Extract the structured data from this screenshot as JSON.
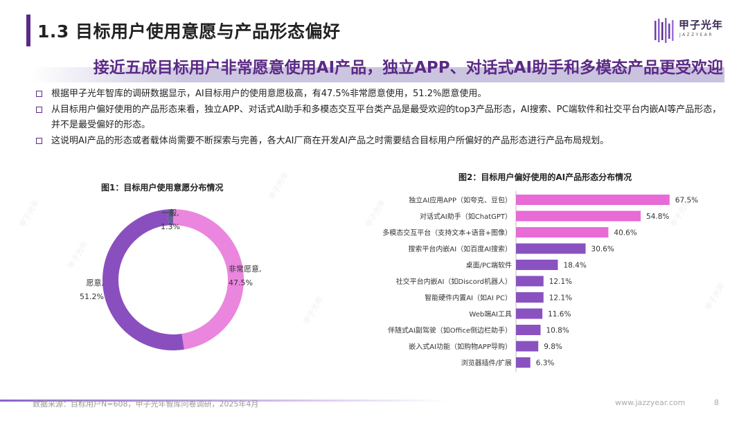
{
  "header": {
    "title": "1.3 目标用户使用意愿与产品形态偏好",
    "logo_text": "甲子光年",
    "logo_sub": "JAZZYEAR"
  },
  "headline": "接近五成目标用户非常愿意使用AI产品，独立APP、对话式AI助手和多模态产品更受欢迎",
  "bullets": [
    "根据甲子光年智库的调研数据显示，AI目标用户的使用意愿极高，有47.5%非常愿意使用，51.2%愿意使用。",
    "从目标用户偏好使用的产品形态来看，独立APP、对话式AI助手和多模态交互平台类产品是最受欢迎的top3产品形态，AI搜索、PC端软件和社交平台内嵌AI等产品形态，并不是最受偏好的形态。",
    "这说明AI产品的形态或者载体尚需要不断探索与完善，各大AI厂商在开发AI产品之时需要结合目标用户所偏好的产品形态进行产品布局规划。"
  ],
  "colors": {
    "purple_dark": "#8a4fbf",
    "pink": "#e86bd6",
    "bar_dark": "#8a52c0",
    "accent": "#5b2a86"
  },
  "chart_data": [
    {
      "type": "pie",
      "title": "图1：目标用户使用意愿分布情况",
      "labels": [
        "非常愿意,",
        "愿意,",
        "一般,"
      ],
      "values": [
        47.5,
        51.2,
        1.3
      ],
      "value_labels": [
        "47.5%",
        "51.2%",
        "1.3%"
      ],
      "colors": [
        "#ea86de",
        "#8a4fbf",
        "#6a5fa0"
      ]
    },
    {
      "type": "bar",
      "title": "图2：目标用户偏好使用的AI产品形态分布情况",
      "categories": [
        "独立AI应用APP（如夸克、豆包）",
        "对话式AI助手（如ChatGPT）",
        "多模态交互平台（支持文本+语音+图像）",
        "搜索平台内嵌AI（如百度AI搜索）",
        "桌面/PC端软件",
        "社交平台内嵌AI（如Discord机器人）",
        "智能硬件内置AI（如AI PC）",
        "Web端AI工具",
        "伴随式AI副驾驶（如Office侧边栏助手）",
        "嵌入式AI功能（如购物APP导购）",
        "浏览器插件/扩展"
      ],
      "values": [
        67.5,
        54.8,
        40.6,
        30.6,
        18.4,
        12.1,
        12.1,
        11.6,
        10.8,
        9.8,
        6.3
      ],
      "value_labels": [
        "67.5%",
        "54.8%",
        "40.6%",
        "30.6%",
        "18.4%",
        "12.1%",
        "12.1%",
        "11.6%",
        "10.8%",
        "9.8%",
        "6.3%"
      ],
      "highlight_count": 3,
      "xlim": [
        0,
        70
      ]
    }
  ],
  "footer": {
    "source": "数据来源：目标用户N=608，甲子光年智库问卷调研，2025年4月",
    "url": "www.jazzyear.com",
    "page": "8"
  }
}
